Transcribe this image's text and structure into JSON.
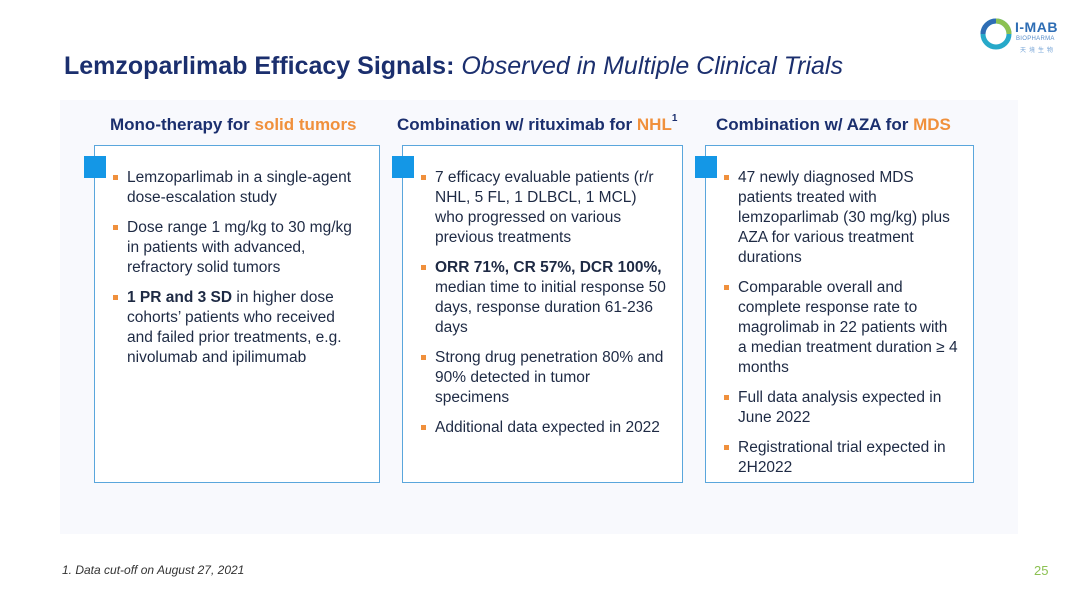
{
  "logo": {
    "name": "I-MAB",
    "sub": "BIOPHARMA",
    "dots": "天境生物",
    "colors": {
      "blue": "#2e6db4",
      "green": "#8cc152",
      "teal": "#27a9c9"
    }
  },
  "title": {
    "bold": "Lemzoparlimab Efficacy Signals:",
    "italic": "Observed in Multiple Clinical Trials"
  },
  "columns": [
    {
      "head_text": "Mono-therapy for ",
      "head_highlight": "solid tumors",
      "head_sup": "",
      "bullets": [
        {
          "text": "Lemzoparlimab in a single-agent dose-escalation study"
        },
        {
          "text": "Dose range 1 mg/kg to 30 mg/kg in patients with advanced, refractory solid tumors"
        },
        {
          "bold": "1 PR and 3 SD",
          "text": " in higher dose cohorts’ patients who received and failed prior treatments, e.g. nivolumab and ipilimumab"
        }
      ]
    },
    {
      "head_text": "Combination w/ rituximab for ",
      "head_highlight": "NHL",
      "head_sup": "1",
      "bullets": [
        {
          "text": "7 efficacy evaluable patients (r/r NHL, 5 FL, 1 DLBCL,   1 MCL) who progressed on various previous treatments"
        },
        {
          "bold": "ORR 71%, CR 57%, DCR 100%,",
          "text": " median time to initial response 50 days, response duration 61-236 days"
        },
        {
          "text": "Strong drug penetration 80% and 90% detected in tumor specimens"
        },
        {
          "text": "Additional data expected in 2022"
        }
      ]
    },
    {
      "head_text": "Combination w/ AZA for ",
      "head_highlight": "MDS",
      "head_sup": "",
      "bullets": [
        {
          "text": "47 newly diagnosed MDS patients treated with lemzoparlimab (30 mg/kg) plus AZA for various treatment durations"
        },
        {
          "text": "Comparable overall and complete response rate to magrolimab in 22 patients with a median treatment duration ≥ 4 months"
        },
        {
          "text": "Full data analysis expected in June 2022"
        },
        {
          "text": "Registrational trial expected in 2H2022"
        }
      ]
    }
  ],
  "footnote": "1. Data cut-off on August 27, 2021",
  "page_number": "25",
  "colors": {
    "title": "#1b2f6e",
    "highlight": "#f0903c",
    "box_border": "#5aa6dc",
    "corner": "#1497e6",
    "bullet": "#f0903c",
    "page_number": "#8cc152"
  }
}
